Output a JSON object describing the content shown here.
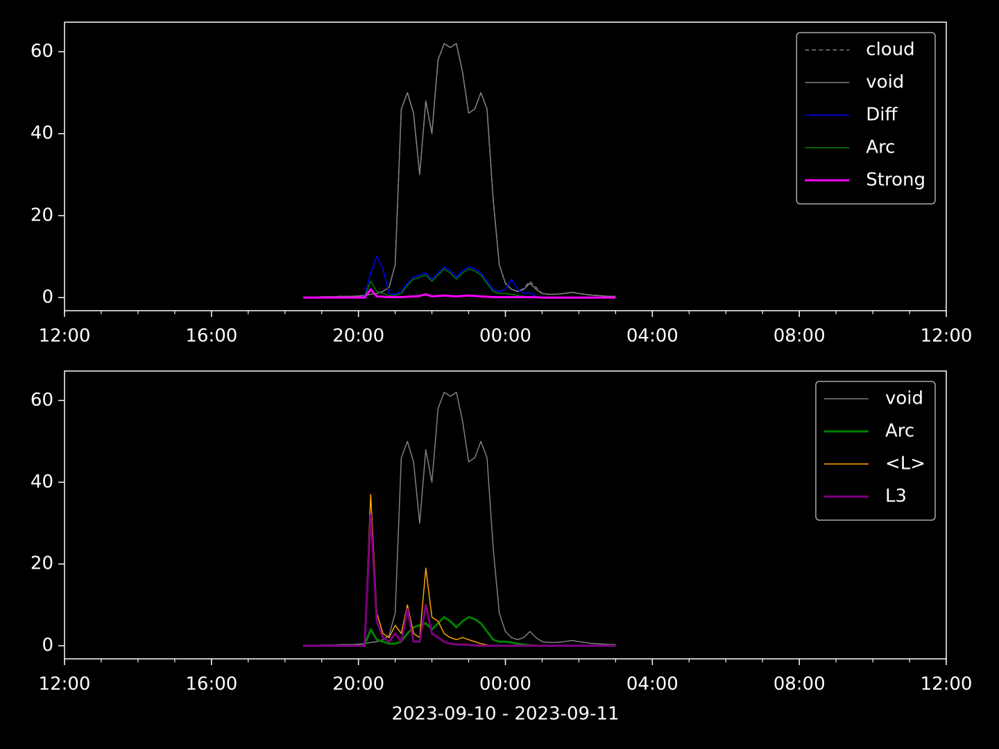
{
  "chart_data": [
    {
      "type": "line",
      "x": [
        "2023-09-10T18:30",
        "2023-09-10T18:40",
        "2023-09-10T18:50",
        "2023-09-10T19:00",
        "2023-09-10T19:10",
        "2023-09-10T19:20",
        "2023-09-10T19:30",
        "2023-09-10T19:40",
        "2023-09-10T19:50",
        "2023-09-10T20:00",
        "2023-09-10T20:10",
        "2023-09-10T20:20",
        "2023-09-10T20:30",
        "2023-09-10T20:40",
        "2023-09-10T20:50",
        "2023-09-10T21:00",
        "2023-09-10T21:10",
        "2023-09-10T21:20",
        "2023-09-10T21:30",
        "2023-09-10T21:40",
        "2023-09-10T21:50",
        "2023-09-10T22:00",
        "2023-09-10T22:10",
        "2023-09-10T22:20",
        "2023-09-10T22:30",
        "2023-09-10T22:40",
        "2023-09-10T22:50",
        "2023-09-10T23:00",
        "2023-09-10T23:10",
        "2023-09-10T23:20",
        "2023-09-10T23:30",
        "2023-09-10T23:40",
        "2023-09-10T23:50",
        "2023-09-11T00:00",
        "2023-09-11T00:10",
        "2023-09-11T00:20",
        "2023-09-11T00:30",
        "2023-09-11T00:40",
        "2023-09-11T00:50",
        "2023-09-11T01:00",
        "2023-09-11T01:10",
        "2023-09-11T01:20",
        "2023-09-11T01:30",
        "2023-09-11T01:40",
        "2023-09-11T01:50",
        "2023-09-11T02:00",
        "2023-09-11T02:10",
        "2023-09-11T02:20",
        "2023-09-11T02:30",
        "2023-09-11T02:40",
        "2023-09-11T02:50",
        "2023-09-11T03:00"
      ],
      "series": [
        {
          "name": "cloud",
          "color": "#808080",
          "linewidth": 1.5,
          "dashed": true,
          "values": [
            0.1,
            0.1,
            0.1,
            0.2,
            0.2,
            0.2,
            0.3,
            0.3,
            0.3,
            0.4,
            0.5,
            0.8,
            1.0,
            1.5,
            2.5,
            8,
            46,
            50,
            45,
            30,
            48,
            40,
            58,
            62,
            61,
            62,
            55,
            45,
            46,
            50,
            46,
            24,
            8,
            3.5,
            2,
            1.5,
            2.2,
            4,
            2.5,
            1,
            0.8,
            0.8,
            0.9,
            1.1,
            1.3,
            1,
            0.8,
            0.6,
            0.5,
            0.4,
            0.3,
            0.3
          ]
        },
        {
          "name": "void",
          "color": "#808080",
          "linewidth": 1.5,
          "values": [
            0.1,
            0.1,
            0.1,
            0.2,
            0.2,
            0.2,
            0.3,
            0.3,
            0.3,
            0.4,
            0.5,
            0.8,
            1.0,
            1.5,
            2.5,
            8,
            46,
            50,
            45,
            30,
            48,
            40,
            58,
            62,
            61,
            62,
            55,
            45,
            46,
            50,
            46,
            24,
            8,
            3.5,
            2,
            1.5,
            2,
            3.5,
            2,
            1,
            0.8,
            0.8,
            0.9,
            1.1,
            1.3,
            1,
            0.8,
            0.6,
            0.5,
            0.4,
            0.3,
            0.3
          ]
        },
        {
          "name": "Diff",
          "color": "blue",
          "linewidth": 1.5,
          "values": [
            0,
            0,
            0,
            0,
            0,
            0,
            0,
            0,
            0,
            0,
            0.3,
            6,
            10,
            7,
            1,
            0.8,
            1.5,
            3.5,
            5,
            5.5,
            6,
            4.5,
            6,
            7.5,
            6.5,
            5,
            6.5,
            7.5,
            7,
            6,
            4,
            2,
            1.5,
            2,
            4.5,
            2,
            1,
            1.2,
            0.3,
            0,
            0,
            0,
            0,
            0,
            0,
            0,
            0,
            0,
            0,
            0,
            0,
            0
          ]
        },
        {
          "name": "Arc",
          "color": "green",
          "linewidth": 1.5,
          "values": [
            0,
            0,
            0,
            0,
            0,
            0,
            0,
            0,
            0,
            0,
            0.1,
            4,
            1.5,
            1,
            0.5,
            0.5,
            1,
            3,
            4.5,
            5,
            5.5,
            4,
            5.5,
            7,
            6,
            4.5,
            6,
            7,
            6.5,
            5.5,
            3.5,
            1.5,
            1,
            1,
            0.8,
            0.5,
            0.3,
            0.1,
            0,
            0,
            0,
            0,
            0,
            0,
            0,
            0,
            0,
            0,
            0,
            0,
            0,
            0
          ]
        },
        {
          "name": "Strong",
          "color": "magenta",
          "linewidth": 3,
          "values": [
            0,
            0,
            0,
            0,
            0,
            0,
            0,
            0,
            0,
            0,
            0,
            2,
            0.3,
            0.2,
            0.1,
            0.1,
            0.1,
            0.2,
            0.3,
            0.4,
            0.8,
            0.3,
            0.4,
            0.5,
            0.4,
            0.3,
            0.4,
            0.5,
            0.4,
            0.3,
            0.2,
            0.1,
            0.1,
            0.1,
            0.1,
            0.1,
            0.1,
            0.1,
            0.1,
            0,
            0,
            0,
            0,
            0,
            0,
            0,
            0,
            0,
            0,
            0,
            0,
            0
          ]
        }
      ],
      "xlim": [
        "2023-09-10T12:00",
        "2023-09-11T12:00"
      ],
      "xticks": [
        {
          "value": "2023-09-10T12:00",
          "label": "12:00"
        },
        {
          "value": "2023-09-10T16:00",
          "label": "16:00"
        },
        {
          "value": "2023-09-10T20:00",
          "label": "20:00"
        },
        {
          "value": "2023-09-11T00:00",
          "label": "00:00"
        },
        {
          "value": "2023-09-11T04:00",
          "label": "04:00"
        },
        {
          "value": "2023-09-11T08:00",
          "label": "08:00"
        },
        {
          "value": "2023-09-11T12:00",
          "label": "12:00"
        }
      ],
      "ylim": [
        -3.2,
        67.2
      ],
      "yticks": [
        0,
        20,
        40,
        60
      ],
      "legend": "upper right"
    },
    {
      "type": "line",
      "x": [
        "2023-09-10T18:30",
        "2023-09-10T18:40",
        "2023-09-10T18:50",
        "2023-09-10T19:00",
        "2023-09-10T19:10",
        "2023-09-10T19:20",
        "2023-09-10T19:30",
        "2023-09-10T19:40",
        "2023-09-10T19:50",
        "2023-09-10T20:00",
        "2023-09-10T20:10",
        "2023-09-10T20:20",
        "2023-09-10T20:30",
        "2023-09-10T20:40",
        "2023-09-10T20:50",
        "2023-09-10T21:00",
        "2023-09-10T21:10",
        "2023-09-10T21:20",
        "2023-09-10T21:30",
        "2023-09-10T21:40",
        "2023-09-10T21:50",
        "2023-09-10T22:00",
        "2023-09-10T22:10",
        "2023-09-10T22:20",
        "2023-09-10T22:30",
        "2023-09-10T22:40",
        "2023-09-10T22:50",
        "2023-09-10T23:00",
        "2023-09-10T23:10",
        "2023-09-10T23:20",
        "2023-09-10T23:30",
        "2023-09-10T23:40",
        "2023-09-10T23:50",
        "2023-09-11T00:00",
        "2023-09-11T00:10",
        "2023-09-11T00:20",
        "2023-09-11T00:30",
        "2023-09-11T00:40",
        "2023-09-11T00:50",
        "2023-09-11T01:00",
        "2023-09-11T01:10",
        "2023-09-11T01:20",
        "2023-09-11T01:30",
        "2023-09-11T01:40",
        "2023-09-11T01:50",
        "2023-09-11T02:00",
        "2023-09-11T02:10",
        "2023-09-11T02:20",
        "2023-09-11T02:30",
        "2023-09-11T02:40",
        "2023-09-11T02:50",
        "2023-09-11T03:00"
      ],
      "series": [
        {
          "name": "void",
          "color": "#808080",
          "linewidth": 1.5,
          "values": [
            0.1,
            0.1,
            0.1,
            0.2,
            0.2,
            0.2,
            0.3,
            0.3,
            0.3,
            0.4,
            0.5,
            0.8,
            1.0,
            1.5,
            2.5,
            8,
            46,
            50,
            45,
            30,
            48,
            40,
            58,
            62,
            61,
            62,
            55,
            45,
            46,
            50,
            46,
            24,
            8,
            3.5,
            2,
            1.5,
            2,
            3.5,
            2,
            1,
            0.8,
            0.8,
            0.9,
            1.1,
            1.3,
            1,
            0.8,
            0.6,
            0.5,
            0.4,
            0.3,
            0.3
          ]
        },
        {
          "name": "Arc",
          "color": "green",
          "linewidth": 3,
          "values": [
            0,
            0,
            0,
            0,
            0,
            0,
            0,
            0,
            0,
            0,
            0.1,
            4,
            1.5,
            1,
            0.5,
            0.5,
            1,
            3,
            4.5,
            5,
            5.5,
            4,
            5.5,
            7,
            6,
            4.5,
            6,
            7,
            6.5,
            5.5,
            3.5,
            1.5,
            1,
            1,
            0.8,
            0.5,
            0.3,
            0.1,
            0,
            0,
            0,
            0,
            0,
            0,
            0,
            0,
            0,
            0,
            0,
            0,
            0,
            0
          ]
        },
        {
          "name": "<L>",
          "color": "orange",
          "linewidth": 1.5,
          "values": [
            0,
            0,
            0,
            0,
            0,
            0,
            0,
            0,
            0,
            0,
            0,
            37,
            8,
            3,
            2,
            5,
            3,
            10,
            3,
            2,
            19,
            7,
            6,
            3,
            2,
            1.5,
            2,
            1.5,
            1,
            0.5,
            0.2,
            0,
            0,
            0,
            0,
            0,
            0,
            0,
            0,
            0,
            0,
            0,
            0,
            0,
            0,
            0,
            0,
            0,
            0,
            0,
            0,
            0
          ]
        },
        {
          "name": "L3",
          "color": "purple",
          "linewidth": 3,
          "values": [
            0,
            0,
            0,
            0,
            0,
            0,
            0,
            0,
            0,
            0,
            0,
            32,
            6,
            2,
            1,
            3,
            1,
            9,
            1,
            1,
            10,
            3,
            2,
            1,
            0.5,
            0.3,
            0.3,
            0.2,
            0.1,
            0,
            0,
            0,
            0,
            0,
            0,
            0,
            0,
            0,
            0,
            0,
            0,
            0,
            0,
            0,
            0,
            0,
            0,
            0,
            0,
            0,
            0,
            0
          ]
        }
      ],
      "xlim": [
        "2023-09-10T12:00",
        "2023-09-11T12:00"
      ],
      "xticks": [
        {
          "value": "2023-09-10T12:00",
          "label": "12:00"
        },
        {
          "value": "2023-09-10T16:00",
          "label": "16:00"
        },
        {
          "value": "2023-09-10T20:00",
          "label": "20:00"
        },
        {
          "value": "2023-09-11T00:00",
          "label": "00:00"
        },
        {
          "value": "2023-09-11T04:00",
          "label": "04:00"
        },
        {
          "value": "2023-09-11T08:00",
          "label": "08:00"
        },
        {
          "value": "2023-09-11T12:00",
          "label": "12:00"
        }
      ],
      "ylim": [
        -3.2,
        67.2
      ],
      "yticks": [
        0,
        20,
        40,
        60
      ],
      "legend": "upper right",
      "xlabel": "2023-09-10 - 2023-09-11"
    }
  ]
}
